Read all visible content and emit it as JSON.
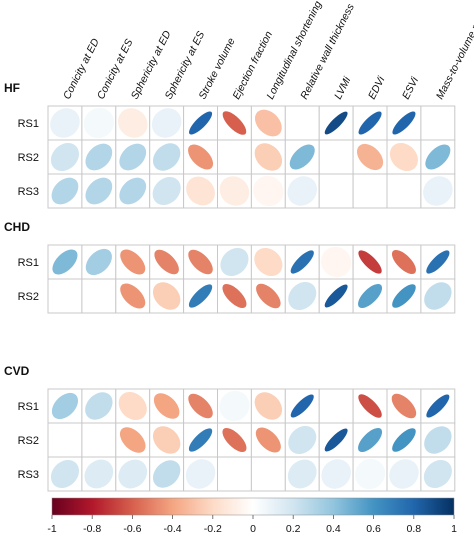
{
  "chart_data": {
    "type": "heatmap",
    "columns": [
      "Conicity at ED",
      "Conicity at ES",
      "Sphericity at ED",
      "Sphericity at ES",
      "Stroke volume",
      "Ejection fraction",
      "Longitudinal shortening",
      "Relative wall thickness",
      "LVMi",
      "EDVi",
      "ESVi",
      "Mass-to-volume ratio"
    ],
    "groups": [
      {
        "name": "HF",
        "rows": [
          {
            "label": "RS1",
            "values": [
              0.1,
              0.05,
              -0.1,
              0.1,
              0.8,
              -0.6,
              -0.3,
              null,
              0.9,
              0.8,
              0.8,
              null
            ]
          },
          {
            "label": "RS2",
            "values": [
              0.2,
              0.3,
              0.3,
              0.25,
              -0.45,
              null,
              -0.25,
              0.45,
              null,
              -0.35,
              -0.2,
              0.45
            ]
          },
          {
            "label": "RS3",
            "values": [
              0.3,
              0.3,
              0.3,
              0.2,
              -0.15,
              -0.1,
              -0.05,
              0.1,
              null,
              null,
              null,
              0.1
            ]
          }
        ]
      },
      {
        "name": "CHD",
        "rows": [
          {
            "label": "RS1",
            "values": [
              0.45,
              0.35,
              -0.45,
              -0.5,
              -0.5,
              0.2,
              -0.2,
              0.75,
              -0.05,
              -0.7,
              -0.55,
              0.75
            ]
          },
          {
            "label": "RS2",
            "values": [
              null,
              null,
              -0.45,
              -0.25,
              0.7,
              -0.55,
              -0.5,
              0.2,
              0.85,
              0.55,
              0.6,
              0.25
            ]
          }
        ]
      },
      {
        "name": "CVD",
        "rows": [
          {
            "label": "RS1",
            "values": [
              0.35,
              0.25,
              -0.2,
              -0.4,
              -0.5,
              0.05,
              -0.25,
              0.8,
              null,
              -0.65,
              -0.5,
              0.8
            ]
          },
          {
            "label": "RS2",
            "values": [
              null,
              null,
              -0.4,
              -0.25,
              0.7,
              -0.55,
              -0.45,
              0.2,
              0.85,
              0.55,
              0.6,
              0.25
            ]
          },
          {
            "label": "RS3",
            "values": [
              0.2,
              0.15,
              0.15,
              0.25,
              0.1,
              null,
              null,
              0.15,
              0.1,
              0.05,
              0.1,
              0.2
            ]
          }
        ]
      }
    ],
    "colorbar": {
      "range": [
        -1,
        1
      ],
      "ticks": [
        "-1",
        "-0.8",
        "-0.6",
        "-0.4",
        "-0.2",
        "0",
        "0.2",
        "0.4",
        "0.6",
        "0.8",
        "1"
      ],
      "colors": [
        "#67001f",
        "#b2182b",
        "#d6604d",
        "#f4a582",
        "#fddbc7",
        "#ffffff",
        "#d1e5f0",
        "#92c5de",
        "#4393c3",
        "#2166ac",
        "#053061"
      ]
    },
    "grid": true,
    "legend": "bottom"
  }
}
